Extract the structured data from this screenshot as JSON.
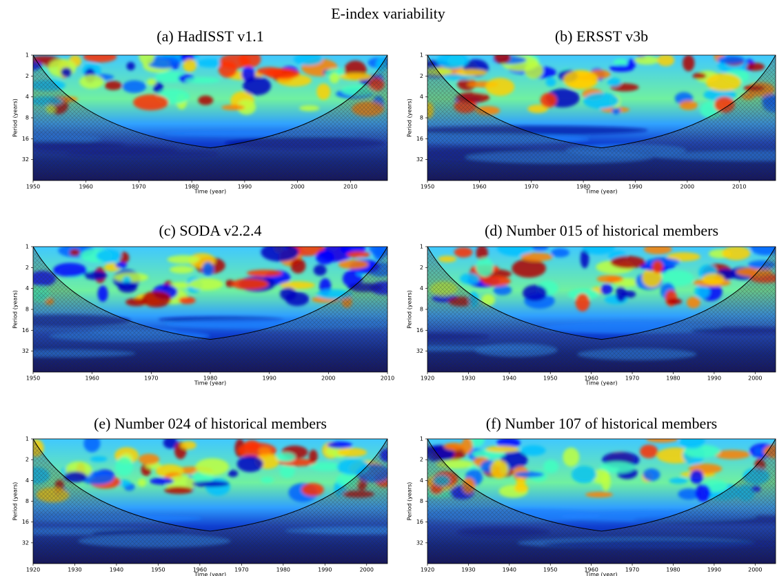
{
  "title": "E-index variability",
  "chart_data": [
    {
      "type": "wavelet",
      "title": "(a) HadISST v1.1",
      "xlabel": "Time (year)",
      "ylabel": "Period (years)",
      "xlim": [
        1950,
        2017
      ],
      "xticks": [
        1950,
        1960,
        1970,
        1980,
        1990,
        2000,
        2010
      ],
      "ylim": [
        1,
        64
      ],
      "yticks": [
        1,
        2,
        4,
        8,
        16,
        32
      ],
      "yscale": "log",
      "yinverted": true
    },
    {
      "type": "wavelet",
      "title": "(b) ERSST v3b",
      "xlabel": "Time (year)",
      "ylabel": "Period (years)",
      "xlim": [
        1950,
        2017
      ],
      "xticks": [
        1950,
        1960,
        1970,
        1980,
        1990,
        2000,
        2010
      ],
      "ylim": [
        1,
        64
      ],
      "yticks": [
        1,
        2,
        4,
        8,
        16,
        32
      ],
      "yscale": "log",
      "yinverted": true
    },
    {
      "type": "wavelet",
      "title": "(c) SODA v2.2.4",
      "xlabel": "Time (year)",
      "ylabel": "Period (years)",
      "xlim": [
        1950,
        2010
      ],
      "xticks": [
        1950,
        1960,
        1970,
        1980,
        1990,
        2000,
        2010
      ],
      "ylim": [
        1,
        64
      ],
      "yticks": [
        1,
        2,
        4,
        8,
        16,
        32
      ],
      "yscale": "log",
      "yinverted": true
    },
    {
      "type": "wavelet",
      "title": "(d) Number 015 of historical members",
      "xlabel": "Time (year)",
      "ylabel": "Period (years)",
      "xlim": [
        1920,
        2005
      ],
      "xticks": [
        1920,
        1930,
        1940,
        1950,
        1960,
        1970,
        1980,
        1990,
        2000
      ],
      "ylim": [
        1,
        64
      ],
      "yticks": [
        1,
        2,
        4,
        8,
        16,
        32
      ],
      "yscale": "log",
      "yinverted": true
    },
    {
      "type": "wavelet",
      "title": "(e) Number 024 of historical members",
      "xlabel": "Time (year)",
      "ylabel": "Period (years)",
      "xlim": [
        1920,
        2005
      ],
      "xticks": [
        1920,
        1930,
        1940,
        1950,
        1960,
        1970,
        1980,
        1990,
        2000
      ],
      "ylim": [
        1,
        64
      ],
      "yticks": [
        1,
        2,
        4,
        8,
        16,
        32
      ],
      "yscale": "log",
      "yinverted": true
    },
    {
      "type": "wavelet",
      "title": "(f) Number 107 of historical members",
      "xlabel": "Time (year)",
      "ylabel": "Period (years)",
      "xlim": [
        1920,
        2005
      ],
      "xticks": [
        1920,
        1930,
        1940,
        1950,
        1960,
        1970,
        1980,
        1990,
        2000
      ],
      "ylim": [
        1,
        64
      ],
      "yticks": [
        1,
        2,
        4,
        8,
        16,
        32
      ],
      "yscale": "log",
      "yinverted": true
    }
  ]
}
